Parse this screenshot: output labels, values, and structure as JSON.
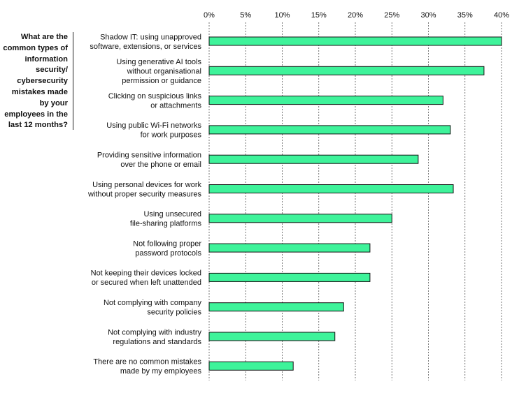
{
  "question": "What are the common types of information security/ cybersecurity mistakes made by your employees in the last 12 months?",
  "colors": {
    "bar_fill": "#3ef39a",
    "bar_stroke": "#111111",
    "grid": "#555555"
  },
  "chart_data": {
    "type": "bar",
    "orientation": "horizontal",
    "xlim": [
      0,
      40
    ],
    "x_ticks": [
      "0%",
      "5%",
      "10%",
      "15%",
      "20%",
      "25%",
      "30%",
      "35%",
      "40%"
    ],
    "x_tick_values": [
      0,
      5,
      10,
      15,
      20,
      25,
      30,
      35,
      40
    ],
    "grid": true,
    "axis_position": "top",
    "categories": [
      [
        "Shadow IT: using unapproved",
        "software, extensions, or services"
      ],
      [
        "Using generative AI tools",
        "without organisational",
        "permission or guidance"
      ],
      [
        "Clicking on suspicious links",
        "or attachments"
      ],
      [
        "Using public Wi-Fi networks",
        "for work purposes"
      ],
      [
        "Providing sensitive information",
        "over the phone or email"
      ],
      [
        "Using personal devices for work",
        "without proper security measures"
      ],
      [
        "Using unsecured",
        "file-sharing platforms"
      ],
      [
        "Not following proper",
        "password protocols"
      ],
      [
        "Not keeping their devices locked",
        "or secured when left unattended"
      ],
      [
        "Not complying with company",
        "security policies"
      ],
      [
        "Not complying with industry",
        "regulations and standards"
      ],
      [
        "There are no common mistakes",
        "made by my employees"
      ]
    ],
    "values": [
      40,
      37.6,
      32,
      33,
      28.6,
      33.4,
      25,
      22,
      22,
      18.4,
      17.2,
      11.5
    ]
  }
}
